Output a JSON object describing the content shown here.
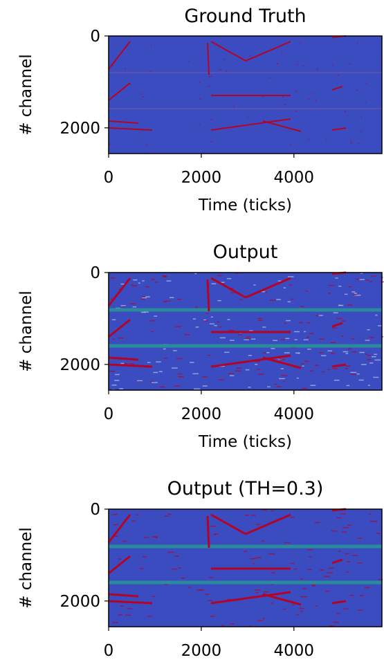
{
  "chart_data": [
    {
      "type": "image",
      "title": "Ground Truth",
      "xlabel": "Time (ticks)",
      "ylabel": "# channel",
      "xlim": [
        0,
        5900
      ],
      "xticks": [
        0,
        2000,
        4000
      ],
      "ylim": [
        0,
        2560
      ],
      "yticks": [
        0,
        2000
      ],
      "y_inverted": true,
      "background": "#3b4cc0",
      "track_color": "#b40426"
    },
    {
      "type": "image",
      "title": "Output",
      "xlabel": "Time (ticks)",
      "ylabel": "# channel",
      "xlim": [
        0,
        5900
      ],
      "xticks": [
        0,
        2000,
        4000
      ],
      "ylim": [
        0,
        2560
      ],
      "yticks": [
        0,
        2000
      ],
      "y_inverted": true,
      "background": "#3b4cc0",
      "track_color": "#b40426",
      "band_color": "#2a8c9a"
    },
    {
      "type": "image",
      "title": "Output (TH=0.3)",
      "ylabel": "# channel",
      "xlim": [
        0,
        5900
      ],
      "xticks": [
        0,
        2000,
        4000
      ],
      "ylim": [
        0,
        2560
      ],
      "yticks": [
        0,
        2000
      ],
      "y_inverted": true,
      "background": "#3b4cc0",
      "track_color": "#b40426",
      "band_color": "#2a8c9a"
    }
  ]
}
